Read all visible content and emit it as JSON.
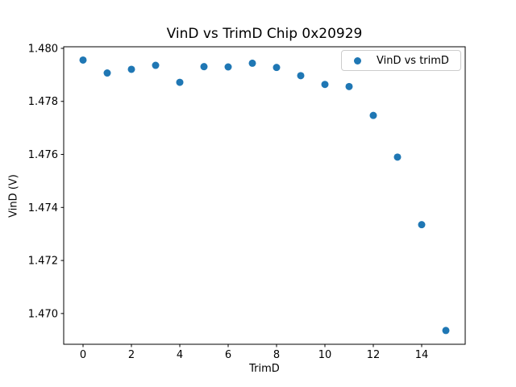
{
  "figure": {
    "background": "#ffffff"
  },
  "chart_data": {
    "type": "scatter",
    "title": "VinD vs TrimD Chip 0x20929",
    "xlabel": "TrimD",
    "ylabel": "VinD (V)",
    "legend": {
      "label": "VinD vs trimD",
      "position": "upper right"
    },
    "marker": {
      "shape": "circle",
      "color": "#1f77b4"
    },
    "axis_color": "#000000",
    "grid": false,
    "x": [
      0,
      1,
      2,
      3,
      4,
      5,
      6,
      7,
      8,
      9,
      10,
      11,
      12,
      13,
      14,
      15
    ],
    "y": [
      1.47956,
      1.47907,
      1.47921,
      1.47936,
      1.47872,
      1.47931,
      1.4793,
      1.47944,
      1.47928,
      1.47897,
      1.47864,
      1.47856,
      1.47747,
      1.4759,
      1.47335,
      1.46936
    ],
    "xlim": [
      -0.8,
      15.8
    ],
    "ylim": [
      1.46884,
      1.48006
    ],
    "xticks": [
      0,
      2,
      4,
      6,
      8,
      10,
      12,
      14
    ],
    "xtick_labels": [
      "0",
      "2",
      "4",
      "6",
      "8",
      "10",
      "12",
      "14"
    ],
    "yticks": [
      1.47,
      1.472,
      1.474,
      1.476,
      1.478,
      1.48
    ],
    "ytick_labels": [
      "1.470",
      "1.472",
      "1.474",
      "1.476",
      "1.478",
      "1.480"
    ]
  }
}
